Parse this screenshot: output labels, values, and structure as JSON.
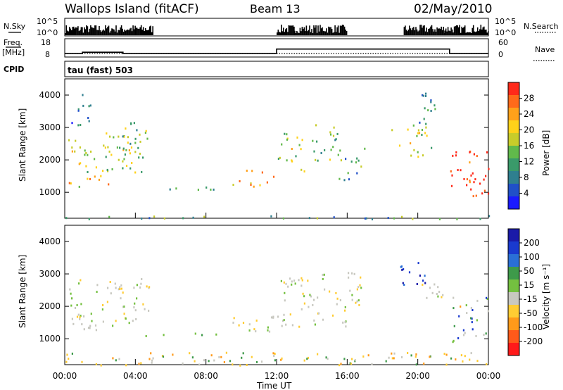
{
  "header": {
    "station": "Wallops Island (fitACF)",
    "beam": "Beam 13",
    "date": "02/May/2010"
  },
  "chart_data": [
    {
      "type": "line",
      "panel": "nsky-nsearch",
      "left_label": "N.Sky",
      "right_label": "N.Search",
      "left_ticks": [
        "10^5",
        "10^0"
      ],
      "right_ticks": [
        "10^5",
        "10^0"
      ],
      "segments_active": [
        [
          0.0,
          1.5
        ],
        [
          1.5,
          4.0
        ],
        [
          4.0,
          5.0
        ],
        [
          12.0,
          13.0
        ],
        [
          13.0,
          16.0
        ],
        [
          19.2,
          21.5
        ],
        [
          21.5,
          24.0
        ]
      ]
    },
    {
      "type": "line",
      "panel": "freq-nave",
      "left_label_1": "Freq.",
      "left_label_2": "[MHz]",
      "right_label": "Nave",
      "left_ticks": [
        "18",
        "8"
      ],
      "right_ticks": [
        "60",
        "0"
      ],
      "freq_ylim": [
        8,
        18
      ],
      "freq_steps": [
        {
          "x": [
            0.0,
            1.0
          ],
          "y": 9.7
        },
        {
          "x": [
            1.0,
            3.3
          ],
          "y": 10.4
        },
        {
          "x": [
            3.3,
            12.0
          ],
          "y": 9.7
        },
        {
          "x": [
            12.0,
            21.8
          ],
          "y": 12.3
        },
        {
          "x": [
            21.8,
            24.0
          ],
          "y": 9.7
        }
      ],
      "nave_value": 10
    },
    {
      "type": "heatmap",
      "panel": "cpid",
      "label": "CPID",
      "program": "tau (fast) 503"
    },
    {
      "type": "heatmap",
      "panel": "power",
      "ylabel": "Slant Range [km]",
      "yticks": [
        1000,
        2000,
        3000,
        4000
      ],
      "ylim": [
        200,
        4500
      ],
      "xlim": [
        0,
        24
      ],
      "colorbar_label": "Power [dB]",
      "colorbar_ticks": [
        "4",
        "8",
        "12",
        "16",
        "20",
        "24",
        "28"
      ],
      "colorbar_colors": [
        "#1a1aff",
        "#2050c8",
        "#2f7f8f",
        "#3a9a6a",
        "#61b94b",
        "#c8cc2a",
        "#ffd21a",
        "#ffa11a",
        "#ff6a1a",
        "#ff2a1a"
      ],
      "echo_regions": [
        {
          "t": [
            0.0,
            2.5
          ],
          "r": [
            1200,
            1700
          ],
          "level": 6
        },
        {
          "t": [
            0.3,
            4.5
          ],
          "r": [
            1600,
            2600
          ],
          "level": 5
        },
        {
          "t": [
            0.0,
            1.2
          ],
          "r": [
            2300,
            2700
          ],
          "level": 4
        },
        {
          "t": [
            0.2,
            1.6
          ],
          "r": [
            3000,
            4100
          ],
          "level": 2
        },
        {
          "t": [
            2.2,
            4.8
          ],
          "r": [
            2000,
            3200
          ],
          "level": 4
        },
        {
          "t": [
            9.5,
            11.8
          ],
          "r": [
            1200,
            1700
          ],
          "level": 7
        },
        {
          "t": [
            12.0,
            12.6
          ],
          "r": [
            1800,
            3000
          ],
          "level": 4
        },
        {
          "t": [
            12.8,
            13.6
          ],
          "r": [
            1600,
            3000
          ],
          "level": 5
        },
        {
          "t": [
            14.0,
            15.5
          ],
          "r": [
            2000,
            3200
          ],
          "level": 4
        },
        {
          "t": [
            15.5,
            17.0
          ],
          "r": [
            1400,
            2500
          ],
          "level": 3
        },
        {
          "t": [
            18.5,
            20.5
          ],
          "r": [
            2000,
            3300
          ],
          "level": 5
        },
        {
          "t": [
            20.0,
            21.0
          ],
          "r": [
            2400,
            4100
          ],
          "level": 3
        },
        {
          "t": [
            21.8,
            24.0
          ],
          "r": [
            900,
            2300
          ],
          "level": 9
        },
        {
          "t": [
            4.0,
            9.0
          ],
          "r": [
            1100,
            1200
          ],
          "level": 2
        },
        {
          "t": [
            0.0,
            24.0
          ],
          "r": [
            200,
            300
          ],
          "level": 3
        }
      ]
    },
    {
      "type": "heatmap",
      "panel": "velocity",
      "ylabel": "Slant Range [km]",
      "yticks": [
        1000,
        2000,
        3000,
        4000
      ],
      "ylim": [
        200,
        4500
      ],
      "xlim": [
        0,
        24
      ],
      "xlabel": "Time UT",
      "xticks": [
        "00:00",
        "04:00",
        "08:00",
        "12:00",
        "16:00",
        "20:00",
        "00:00"
      ],
      "colorbar_label": "Velocity [m s^-1]",
      "colorbar_ticks": [
        "200",
        "100",
        "50",
        "15",
        "-15",
        "-50",
        "-100",
        "-200"
      ],
      "colorbar_colors": [
        "#1a1aa8",
        "#1a3acf",
        "#2a6fd6",
        "#3e9a4a",
        "#74c040",
        "#c8c8c0",
        "#ffcc33",
        "#ff9a1a",
        "#ff5a1a",
        "#ff1a1a"
      ],
      "echo_regions": [
        {
          "t": [
            0.0,
            4.8
          ],
          "r": [
            1300,
            2900
          ],
          "v": "low"
        },
        {
          "t": [
            9.5,
            11.8
          ],
          "r": [
            1200,
            1800
          ],
          "v": "low"
        },
        {
          "t": [
            12.0,
            17.0
          ],
          "r": [
            1400,
            3100
          ],
          "v": "low"
        },
        {
          "t": [
            18.8,
            20.4
          ],
          "r": [
            2600,
            3400
          ],
          "v": "high"
        },
        {
          "t": [
            20.0,
            21.5
          ],
          "r": [
            2200,
            3000
          ],
          "v": "low"
        },
        {
          "t": [
            21.8,
            24.0
          ],
          "r": [
            900,
            2300
          ],
          "v": "mixed"
        },
        {
          "t": [
            4.0,
            9.0
          ],
          "r": [
            1100,
            1200
          ],
          "v": "green"
        },
        {
          "t": [
            0.0,
            24.0
          ],
          "r": [
            200,
            600
          ],
          "v": "orange"
        }
      ]
    }
  ]
}
